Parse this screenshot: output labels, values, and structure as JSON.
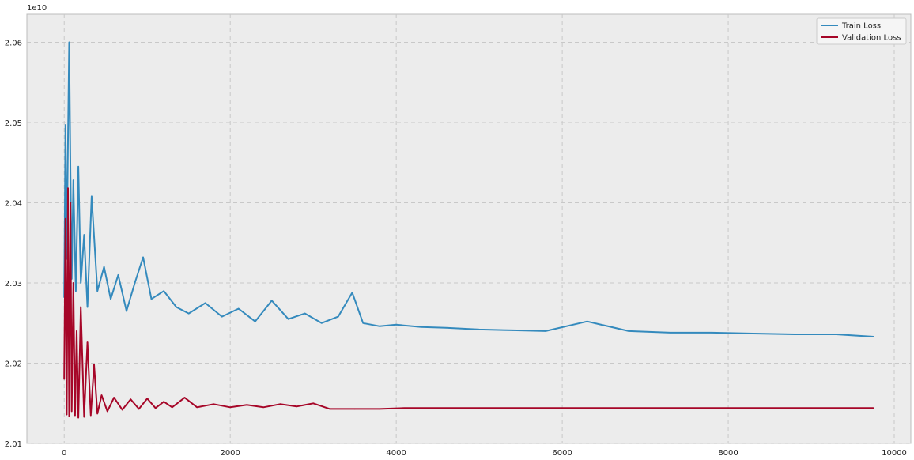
{
  "chart_data": {
    "type": "line",
    "title": "",
    "xlabel": "",
    "ylabel": "",
    "offset_text": "1e10",
    "xlim": [
      -450,
      10200
    ],
    "ylim": [
      2.01,
      2.0635
    ],
    "x_ticks": [
      {
        "value": 0,
        "label": "0"
      },
      {
        "value": 2000,
        "label": "2000"
      },
      {
        "value": 4000,
        "label": "4000"
      },
      {
        "value": 6000,
        "label": "6000"
      },
      {
        "value": 8000,
        "label": "8000"
      },
      {
        "value": 10000,
        "label": "10000"
      }
    ],
    "y_ticks": [
      {
        "value": 2.01,
        "label": "2.01"
      },
      {
        "value": 2.02,
        "label": "2.02"
      },
      {
        "value": 2.03,
        "label": "2.03"
      },
      {
        "value": 2.04,
        "label": "2.04"
      },
      {
        "value": 2.05,
        "label": "2.05"
      },
      {
        "value": 2.06,
        "label": "2.06"
      }
    ],
    "grid": true,
    "legend_position": "top-right",
    "background_color": "#ececec",
    "series": [
      {
        "name": "Train Loss",
        "color": "#348abd",
        "x": [
          0,
          15,
          30,
          45,
          60,
          75,
          90,
          110,
          140,
          170,
          200,
          240,
          280,
          330,
          400,
          480,
          560,
          650,
          750,
          850,
          950,
          1050,
          1200,
          1350,
          1500,
          1700,
          1900,
          2100,
          2300,
          2500,
          2700,
          2900,
          3100,
          3300,
          3470,
          3600,
          3800,
          4000,
          4300,
          4600,
          5000,
          5400,
          5800,
          6300,
          6800,
          7300,
          7800,
          8300,
          8800,
          9300,
          9750
        ],
        "y": [
          2.0282,
          2.0497,
          2.033,
          2.0478,
          2.06,
          2.044,
          2.0305,
          2.0428,
          2.029,
          2.0445,
          2.03,
          2.036,
          2.027,
          2.0408,
          2.029,
          2.032,
          2.028,
          2.031,
          2.0265,
          2.03,
          2.0332,
          2.028,
          2.029,
          2.027,
          2.0262,
          2.0275,
          2.0258,
          2.0268,
          2.0252,
          2.0278,
          2.0255,
          2.0262,
          2.025,
          2.0258,
          2.0288,
          2.025,
          2.0246,
          2.0248,
          2.0245,
          2.0244,
          2.0242,
          2.0241,
          2.024,
          2.0252,
          2.024,
          2.0238,
          2.0238,
          2.0237,
          2.0236,
          2.0236,
          2.0233
        ]
      },
      {
        "name": "Validation Loss",
        "color": "#a60628",
        "x": [
          0,
          15,
          30,
          45,
          60,
          75,
          90,
          110,
          130,
          150,
          170,
          200,
          240,
          280,
          320,
          360,
          400,
          450,
          520,
          600,
          700,
          800,
          900,
          1000,
          1100,
          1200,
          1300,
          1450,
          1600,
          1800,
          2000,
          2200,
          2400,
          2600,
          2800,
          3000,
          3200,
          3500,
          3800,
          4100,
          4500,
          5000,
          5500,
          6000,
          6500,
          7000,
          7500,
          8000,
          8500,
          9000,
          9500,
          9750
        ],
        "y": [
          2.018,
          2.038,
          2.0136,
          2.0418,
          2.0134,
          2.04,
          2.014,
          2.03,
          2.0135,
          2.024,
          2.0132,
          2.027,
          2.0133,
          2.0226,
          2.0135,
          2.0198,
          2.0137,
          2.016,
          2.014,
          2.0157,
          2.0142,
          2.0155,
          2.0143,
          2.0156,
          2.0144,
          2.0152,
          2.0145,
          2.0157,
          2.0145,
          2.0149,
          2.0145,
          2.0148,
          2.0145,
          2.0149,
          2.0146,
          2.015,
          2.0143,
          2.0143,
          2.0143,
          2.0144,
          2.0144,
          2.0144,
          2.0144,
          2.0144,
          2.0144,
          2.0144,
          2.0144,
          2.0144,
          2.0144,
          2.0144,
          2.0144,
          2.0144
        ]
      }
    ]
  }
}
